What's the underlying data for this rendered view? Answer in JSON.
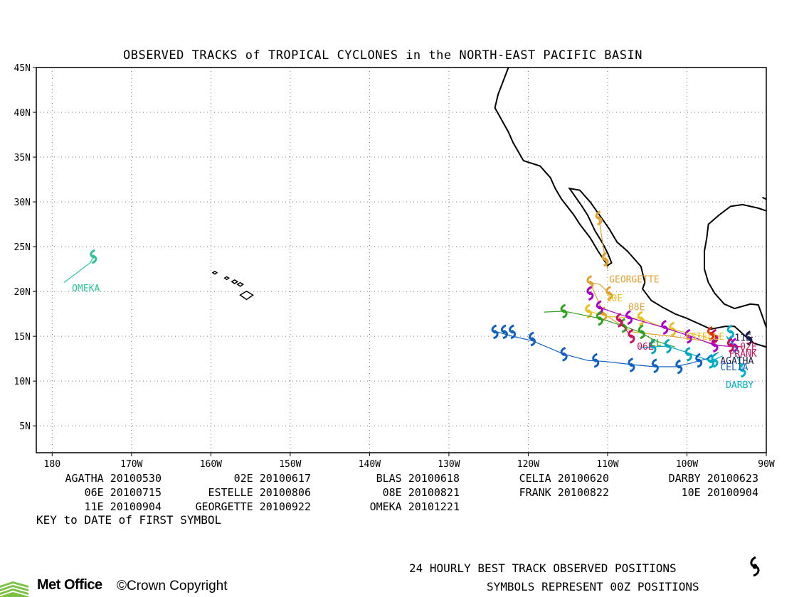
{
  "title": "OBSERVED TRACKS of TROPICAL CYCLONES in the NORTH-EAST PACIFIC BASIN",
  "lat_labels": [
    "45N",
    "40N",
    "35N",
    "30N",
    "25N",
    "20N",
    "15N",
    "10N",
    "5N"
  ],
  "lon_labels": [
    "180",
    "170W",
    "160W",
    "150W",
    "140W",
    "130W",
    "120W",
    "110W",
    "100W",
    "90W"
  ],
  "key": [
    {
      "name": "AGATHA",
      "date": "20100530"
    },
    {
      "name": "02E",
      "date": "20100617"
    },
    {
      "name": "BLAS",
      "date": "20100618"
    },
    {
      "name": "CELIA",
      "date": "20100620"
    },
    {
      "name": "DARBY",
      "date": "20100623"
    },
    {
      "name": "06E",
      "date": "20100715"
    },
    {
      "name": "ESTELLE",
      "date": "20100806"
    },
    {
      "name": "08E",
      "date": "20100821"
    },
    {
      "name": "FRANK",
      "date": "20100822"
    },
    {
      "name": "10E",
      "date": "20100904"
    },
    {
      "name": "11E",
      "date": "20100904"
    },
    {
      "name": "GEORGETTE",
      "date": "20100922"
    },
    {
      "name": "OMEKA",
      "date": "20101221"
    }
  ],
  "key_note": "KEY to DATE of FIRST SYMBOL",
  "footer_line1": "24 HOURLY BEST TRACK OBSERVED POSITIONS",
  "footer_line2": "SYMBOLS REPRESENT 00Z POSITIONS",
  "logo_text": "Met Office",
  "copyright": "Crown Copyright",
  "storms": [
    {
      "name": "OMEKA",
      "label": "OMEKA",
      "color": "#2bc49a",
      "track": [
        [
          -174.8,
          23.9
        ],
        [
          -175.2,
          23.2
        ],
        [
          -178.5,
          21.0
        ]
      ],
      "symbols": [
        [
          -174.8,
          23.9
        ]
      ]
    },
    {
      "name": "GEORGETTE",
      "label": "GEORGETTE",
      "color": "#e0a030",
      "track": [
        [
          -110.0,
          22.5
        ],
        [
          -110.3,
          23.6
        ],
        [
          -111.1,
          28.2
        ]
      ],
      "symbols": [
        [
          -110.3,
          23.6
        ],
        [
          -111.1,
          28.2
        ]
      ]
    },
    {
      "name": "10E",
      "label": "10E",
      "color": "#e0a030",
      "track": [
        [
          -109.8,
          19.8
        ],
        [
          -111.0,
          20.8
        ],
        [
          -112.2,
          21.0
        ],
        [
          -110.5,
          17.5
        ],
        [
          -107.0,
          15.5
        ],
        [
          -102.0,
          15.0
        ],
        [
          -98.0,
          14.5
        ],
        [
          -96.0,
          14.0
        ]
      ],
      "symbols": [
        [
          -109.8,
          19.8
        ],
        [
          -112.2,
          21.0
        ],
        [
          -110.5,
          17.5
        ]
      ]
    },
    {
      "name": "08E",
      "label": "08E",
      "color": "#e8c020",
      "track": [
        [
          -112.4,
          17.8
        ],
        [
          -110.0,
          17.2
        ],
        [
          -105.8,
          17.0
        ],
        [
          -103.0,
          16.0
        ],
        [
          -98.0,
          15.0
        ],
        [
          -96.5,
          14.5
        ]
      ],
      "symbols": [
        [
          -112.4,
          17.8
        ],
        [
          -105.8,
          17.0
        ],
        [
          -101.8,
          15.8
        ]
      ]
    },
    {
      "name": "FRANK",
      "label": "FRANK",
      "color": "#aa00cc",
      "track": [
        [
          -111.0,
          18.2
        ],
        [
          -107.3,
          17.1
        ],
        [
          -103.0,
          16.0
        ],
        [
          -99.5,
          15.0
        ],
        [
          -96.5,
          14.0
        ],
        [
          -93.5,
          13.8
        ]
      ],
      "symbols": [
        [
          -111.0,
          18.2
        ],
        [
          -107.3,
          17.1
        ],
        [
          -102.8,
          16.0
        ],
        [
          -99.8,
          15.0
        ],
        [
          -96.5,
          14.0
        ],
        [
          -94.0,
          14.0
        ],
        [
          -112.2,
          19.8
        ]
      ]
    },
    {
      "name": "ESTELLE",
      "label": "ESTELLE",
      "color": "#30a020",
      "track": [
        [
          -118.0,
          17.7
        ],
        [
          -115.5,
          17.8
        ],
        [
          -111.0,
          17.0
        ],
        [
          -108.2,
          16.2
        ],
        [
          -106.0,
          15.5
        ],
        [
          -104.0,
          14.5
        ],
        [
          -101.5,
          13.8
        ]
      ],
      "symbols": [
        [
          -115.5,
          17.8
        ],
        [
          -111.0,
          17.0
        ],
        [
          -108.0,
          16.2
        ],
        [
          -105.7,
          15.5
        ]
      ]
    },
    {
      "name": "06E",
      "label": "06E",
      "color": "#cc1060",
      "track": [
        [
          -108.5,
          16.8
        ],
        [
          -107.5,
          15.5
        ],
        [
          -106.8,
          14.8
        ]
      ],
      "symbols": [
        [
          -108.5,
          16.8
        ],
        [
          -107.0,
          15.0
        ],
        [
          -96.5,
          15.0
        ]
      ]
    },
    {
      "name": "BLAS",
      "label": "BLAS",
      "color": "#00a8c0",
      "track": [
        [
          -106.0,
          13.7
        ],
        [
          -104.5,
          13.8
        ],
        [
          -102.5,
          13.9
        ],
        [
          -100.0,
          13.2
        ],
        [
          -97.0,
          12.2
        ],
        [
          -95.5,
          12.8
        ]
      ],
      "symbols": [
        [
          -104.3,
          13.8
        ],
        [
          -102.4,
          13.9
        ],
        [
          -99.8,
          13.0
        ],
        [
          -97.0,
          12.2
        ]
      ]
    },
    {
      "name": "CELIA",
      "label": "CELIA",
      "color": "#1060c0",
      "track": [
        [
          -124.0,
          15.5
        ],
        [
          -122.0,
          15.0
        ],
        [
          -119.5,
          14.5
        ],
        [
          -115.5,
          13.0
        ],
        [
          -112.5,
          12.3
        ],
        [
          -110.5,
          12.2
        ],
        [
          -106.5,
          11.8
        ],
        [
          -104.0,
          11.6
        ],
        [
          -101.5,
          11.6
        ],
        [
          -99.5,
          12.0
        ],
        [
          -97.5,
          12.5
        ],
        [
          -96.0,
          13.2
        ]
      ],
      "symbols": [
        [
          -124.2,
          15.5
        ],
        [
          -123.0,
          15.5
        ],
        [
          -122.0,
          15.5
        ],
        [
          -119.5,
          14.7
        ],
        [
          -115.5,
          13.0
        ],
        [
          -111.5,
          12.3
        ],
        [
          -107.0,
          11.8
        ],
        [
          -104.0,
          11.7
        ],
        [
          -101.0,
          11.6
        ],
        [
          -98.5,
          12.3
        ]
      ]
    },
    {
      "name": "DARBY",
      "label": "DARBY",
      "color": "#00b0c8",
      "track": [
        [
          -93.5,
          13.2
        ],
        [
          -94.5,
          14.5
        ],
        [
          -95.0,
          15.0
        ],
        [
          -93.0,
          11.5
        ]
      ],
      "symbols": [
        [
          -94.5,
          15.5
        ],
        [
          -93.0,
          11.2
        ],
        [
          -96.5,
          12.3
        ]
      ]
    },
    {
      "name": "AGATHA",
      "label": "AGATHA",
      "color": "#1a1a50",
      "track": [
        [
          -92.5,
          14.8
        ],
        [
          -91.7,
          14.9
        ]
      ],
      "symbols": [
        [
          -92.2,
          14.8
        ]
      ]
    },
    {
      "name": "02E",
      "label": "02E",
      "color": "#e03000",
      "track": [
        [
          -97.0,
          15.3
        ],
        [
          -96.0,
          15.0
        ]
      ],
      "symbols": [
        [
          -97.0,
          15.3
        ]
      ]
    },
    {
      "name": "11E",
      "label": "11E",
      "color": "#cc1060",
      "track": [
        [
          -94.5,
          14.0
        ],
        [
          -93.0,
          13.8
        ]
      ],
      "symbols": [
        [
          -94.5,
          14.0
        ]
      ]
    }
  ],
  "labels": [
    {
      "text": "OMEKA",
      "lon": -177.5,
      "lat": 20.0,
      "color": "#2bc49a"
    },
    {
      "text": "GEORGETTE",
      "lon": -109.8,
      "lat": 21.0,
      "color": "#e0a030"
    },
    {
      "text": "10E",
      "lon": -110.2,
      "lat": 18.9,
      "color": "#e8c020"
    },
    {
      "text": "08E",
      "lon": -107.4,
      "lat": 17.9,
      "color": "#e0a030"
    },
    {
      "text": "06E",
      "lon": -106.3,
      "lat": 13.5,
      "color": "#cc1060"
    },
    {
      "text": "EL",
      "lon": -104.6,
      "lat": 13.9,
      "color": "#30a020"
    },
    {
      "text": "ESTELLE",
      "lon": -100.2,
      "lat": 14.6,
      "color": "#e8c020"
    },
    {
      "text": "11E",
      "lon": -94.0,
      "lat": 14.5,
      "color": "#1a1a50"
    },
    {
      "text": "02E",
      "lon": -93.3,
      "lat": 13.5,
      "color": "#cc1060"
    },
    {
      "text": "FRANK",
      "lon": -94.7,
      "lat": 12.7,
      "color": "#cc1060"
    },
    {
      "text": "AGATHA",
      "lon": -95.8,
      "lat": 11.9,
      "color": "#1a1a50"
    },
    {
      "text": "CELIA",
      "lon": -95.8,
      "lat": 11.2,
      "color": "#1060c0"
    },
    {
      "text": "DARBY",
      "lon": -95.1,
      "lat": 9.2,
      "color": "#00b0c8"
    }
  ]
}
